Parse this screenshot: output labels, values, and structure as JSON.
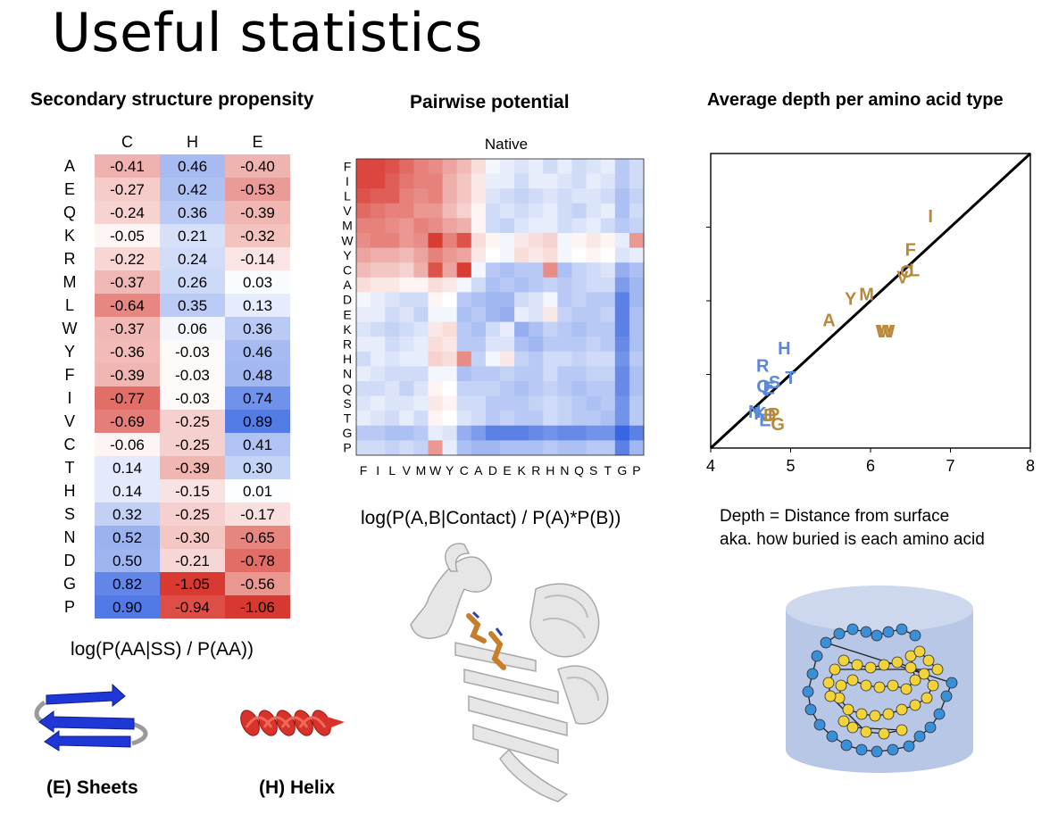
{
  "slide": {
    "title": "Useful statistics"
  },
  "ss_panel": {
    "header": "Secondary structure propensity",
    "formula": "log(P(AA|SS) / P(AA))",
    "sheets_label": "(E) Sheets",
    "helix_label": "(H) Helix"
  },
  "pair_panel": {
    "header": "Pairwise potential",
    "formula": "log(P(A,B|Contact) / P(A)*P(B))"
  },
  "depth_panel": {
    "header": "Average depth per amino acid type",
    "note_line1": "Depth = Distance from surface",
    "note_line2": "aka. how buried is each amino acid"
  },
  "colors": {
    "heat_neg": "#d7301f",
    "heat_pos": "#2c5de0",
    "polar": "#5b88d6",
    "hydrophobic": "#b8893a",
    "sheet_blue": "#1f37d6",
    "helix_red": "#d8322a",
    "bead_blue": "#3a8fd8",
    "bead_yellow": "#f2d33a",
    "cylinder": "#b8c7e6"
  },
  "chart_data": [
    {
      "type": "heatmap",
      "title": "",
      "columns": [
        "C",
        "H",
        "E"
      ],
      "rows": [
        "A",
        "E",
        "Q",
        "K",
        "R",
        "M",
        "L",
        "W",
        "Y",
        "F",
        "I",
        "V",
        "C",
        "T",
        "H",
        "S",
        "N",
        "D",
        "G",
        "P"
      ],
      "values": [
        [
          -0.41,
          0.46,
          -0.4
        ],
        [
          -0.27,
          0.42,
          -0.53
        ],
        [
          -0.24,
          0.36,
          -0.39
        ],
        [
          -0.05,
          0.21,
          -0.32
        ],
        [
          -0.22,
          0.24,
          -0.14
        ],
        [
          -0.37,
          0.26,
          0.03
        ],
        [
          -0.64,
          0.35,
          0.13
        ],
        [
          -0.37,
          0.06,
          0.36
        ],
        [
          -0.36,
          -0.03,
          0.46
        ],
        [
          -0.39,
          -0.03,
          0.48
        ],
        [
          -0.77,
          -0.03,
          0.74
        ],
        [
          -0.69,
          -0.25,
          0.89
        ],
        [
          -0.06,
          -0.25,
          0.41
        ],
        [
          0.14,
          -0.39,
          0.3
        ],
        [
          0.14,
          -0.15,
          0.01
        ],
        [
          0.32,
          -0.25,
          -0.17
        ],
        [
          0.52,
          -0.3,
          -0.65
        ],
        [
          0.5,
          -0.21,
          -0.78
        ],
        [
          0.82,
          -1.05,
          -0.56
        ],
        [
          0.9,
          -0.94,
          -1.06
        ]
      ],
      "labels": [
        [
          "-0.41",
          "0.46",
          "-0.40"
        ],
        [
          "-0.27",
          "0.42",
          "-0.53"
        ],
        [
          "-0.24",
          "0.36",
          "-0.39"
        ],
        [
          "-0.05",
          "0.21",
          "-0.32"
        ],
        [
          "-0.22",
          "0.24",
          "-0.14"
        ],
        [
          "-0.37",
          "0.26",
          "0.03"
        ],
        [
          "-0.64",
          "0.35",
          "0.13"
        ],
        [
          "-0.37",
          "0.06",
          "0.36"
        ],
        [
          "-0.36",
          "-0.03",
          "0.46"
        ],
        [
          "-0.39",
          "-0.03",
          "0.48"
        ],
        [
          "-0.77",
          "-0.03",
          "0.74"
        ],
        [
          "-0.69",
          "-0.25",
          "0.89"
        ],
        [
          "-0.06",
          "-0.25",
          "0.41"
        ],
        [
          "0.14",
          "-0.39",
          "0.30"
        ],
        [
          "0.14",
          "-0.15",
          "0.01"
        ],
        [
          "0.32",
          "-0.25",
          "-0.17"
        ],
        [
          "0.52",
          "-0.30",
          "-0.65"
        ],
        [
          "0.50",
          "-0.21",
          "-0.78"
        ],
        [
          "0.82",
          "-1.05",
          "-0.56"
        ],
        [
          "0.90",
          "-0.94",
          "-1.06"
        ]
      ]
    },
    {
      "type": "heatmap",
      "title": "Native",
      "rows": [
        "F",
        "I",
        "L",
        "V",
        "M",
        "W",
        "Y",
        "C",
        "A",
        "D",
        "E",
        "K",
        "R",
        "H",
        "N",
        "Q",
        "S",
        "T",
        "G",
        "P"
      ],
      "columns": [
        "F",
        "I",
        "L",
        "V",
        "M",
        "W",
        "Y",
        "C",
        "A",
        "D",
        "E",
        "K",
        "R",
        "H",
        "N",
        "Q",
        "S",
        "T",
        "G",
        "P"
      ],
      "values": [
        [
          -0.8,
          -0.8,
          -0.75,
          -0.65,
          -0.55,
          -0.5,
          -0.4,
          -0.3,
          -0.15,
          0.05,
          0.1,
          0.15,
          0.1,
          0.2,
          0.1,
          0.2,
          0.15,
          0.1,
          0.3,
          0.2
        ],
        [
          -0.8,
          -0.8,
          -0.7,
          -0.6,
          -0.55,
          -0.55,
          -0.35,
          -0.25,
          -0.1,
          0.1,
          0.1,
          0.2,
          0.1,
          0.1,
          0.15,
          0.2,
          0.1,
          0.15,
          0.3,
          0.2
        ],
        [
          -0.75,
          -0.7,
          -0.7,
          -0.55,
          -0.5,
          -0.55,
          -0.35,
          -0.25,
          -0.1,
          0.15,
          0.2,
          0.25,
          0.2,
          0.15,
          0.2,
          0.15,
          0.15,
          0.2,
          0.35,
          0.25
        ],
        [
          -0.65,
          -0.6,
          -0.55,
          -0.55,
          -0.45,
          -0.45,
          -0.3,
          -0.2,
          -0.05,
          0.2,
          0.15,
          0.2,
          0.15,
          0.1,
          0.2,
          0.25,
          0.15,
          0.1,
          0.35,
          0.2
        ],
        [
          -0.55,
          -0.55,
          -0.5,
          -0.45,
          -0.55,
          -0.5,
          -0.4,
          -0.35,
          -0.05,
          0.2,
          0.25,
          0.15,
          0.1,
          0.1,
          0.2,
          0.15,
          0.1,
          0.2,
          0.3,
          0.25
        ],
        [
          -0.5,
          -0.55,
          -0.55,
          -0.45,
          -0.5,
          -0.85,
          -0.55,
          -0.75,
          -0.15,
          -0.05,
          0.05,
          -0.1,
          -0.15,
          -0.2,
          0.05,
          -0.05,
          -0.1,
          -0.05,
          0.1,
          -0.45
        ],
        [
          -0.4,
          -0.35,
          -0.35,
          -0.3,
          -0.4,
          -0.55,
          -0.45,
          -0.4,
          -0.1,
          0.0,
          0.05,
          -0.15,
          -0.1,
          -0.15,
          0.05,
          0.0,
          -0.05,
          0.0,
          0.15,
          0.1
        ],
        [
          -0.3,
          -0.25,
          -0.25,
          -0.2,
          -0.35,
          -0.75,
          -0.4,
          -0.85,
          0.05,
          0.3,
          0.35,
          0.3,
          0.3,
          -0.5,
          0.35,
          0.25,
          0.2,
          0.15,
          0.45,
          0.35
        ],
        [
          -0.15,
          -0.1,
          -0.1,
          -0.05,
          -0.05,
          -0.15,
          -0.1,
          0.05,
          0.2,
          0.35,
          0.3,
          0.35,
          0.3,
          0.25,
          0.3,
          0.25,
          0.2,
          0.2,
          0.55,
          0.4
        ],
        [
          0.05,
          0.1,
          0.15,
          0.2,
          0.2,
          -0.05,
          0.0,
          0.3,
          0.35,
          0.4,
          0.4,
          0.2,
          0.15,
          0.05,
          0.3,
          0.25,
          0.3,
          0.3,
          0.7,
          0.4
        ],
        [
          0.1,
          0.1,
          0.2,
          0.15,
          0.25,
          0.05,
          0.05,
          0.35,
          0.3,
          0.4,
          0.45,
          0.1,
          0.15,
          -0.1,
          0.25,
          0.3,
          0.3,
          0.25,
          0.7,
          0.35
        ],
        [
          0.15,
          0.2,
          0.25,
          0.2,
          0.15,
          -0.1,
          -0.15,
          0.3,
          0.35,
          0.2,
          0.1,
          0.45,
          0.35,
          0.25,
          0.3,
          0.35,
          0.3,
          0.3,
          0.7,
          0.35
        ],
        [
          0.1,
          0.1,
          0.2,
          0.15,
          0.1,
          -0.15,
          -0.1,
          0.3,
          0.3,
          0.15,
          0.15,
          0.35,
          0.4,
          0.3,
          0.3,
          0.3,
          0.25,
          0.3,
          0.65,
          0.35
        ],
        [
          0.2,
          0.1,
          0.15,
          0.1,
          0.1,
          -0.2,
          -0.15,
          -0.5,
          0.25,
          0.05,
          -0.1,
          0.25,
          0.3,
          0.2,
          0.2,
          0.25,
          0.2,
          0.2,
          0.6,
          0.3
        ],
        [
          0.1,
          0.15,
          0.2,
          0.2,
          0.2,
          0.05,
          0.05,
          0.35,
          0.3,
          0.3,
          0.25,
          0.3,
          0.3,
          0.2,
          0.3,
          0.3,
          0.25,
          0.25,
          0.65,
          0.35
        ],
        [
          0.2,
          0.2,
          0.15,
          0.25,
          0.15,
          -0.05,
          0.0,
          0.25,
          0.25,
          0.25,
          0.3,
          0.35,
          0.3,
          0.25,
          0.3,
          0.35,
          0.3,
          0.3,
          0.65,
          0.35
        ],
        [
          0.15,
          0.1,
          0.15,
          0.15,
          0.1,
          -0.1,
          -0.05,
          0.2,
          0.2,
          0.3,
          0.3,
          0.3,
          0.25,
          0.2,
          0.25,
          0.3,
          0.35,
          0.3,
          0.6,
          0.3
        ],
        [
          0.1,
          0.15,
          0.2,
          0.1,
          0.2,
          -0.05,
          0.0,
          0.15,
          0.2,
          0.3,
          0.25,
          0.3,
          0.3,
          0.2,
          0.25,
          0.3,
          0.3,
          0.35,
          0.6,
          0.3
        ],
        [
          0.3,
          0.3,
          0.35,
          0.35,
          0.3,
          0.1,
          0.15,
          0.45,
          0.55,
          0.7,
          0.7,
          0.7,
          0.65,
          0.6,
          0.65,
          0.65,
          0.6,
          0.6,
          0.85,
          0.7
        ],
        [
          0.2,
          0.2,
          0.25,
          0.2,
          0.25,
          -0.45,
          0.1,
          0.35,
          0.4,
          0.4,
          0.35,
          0.35,
          0.35,
          0.3,
          0.35,
          0.35,
          0.3,
          0.3,
          0.7,
          0.4
        ]
      ]
    },
    {
      "type": "scatter",
      "title": "",
      "xlabel": "",
      "ylabel": "",
      "xlim": [
        4,
        8
      ],
      "ylim": [
        4,
        8
      ],
      "xticks": [
        "4",
        "5",
        "6",
        "7",
        "8"
      ],
      "diagonal_line": true,
      "points": [
        {
          "label": "I",
          "x": 6.75,
          "y": 7.15,
          "group": "hydrophobic"
        },
        {
          "label": "F",
          "x": 6.5,
          "y": 6.7,
          "group": "hydrophobic"
        },
        {
          "label": "C",
          "x": 6.45,
          "y": 6.4,
          "group": "hydrophobic"
        },
        {
          "label": "L",
          "x": 6.55,
          "y": 6.42,
          "group": "hydrophobic"
        },
        {
          "label": "V",
          "x": 6.4,
          "y": 6.32,
          "group": "hydrophobic"
        },
        {
          "label": "Y",
          "x": 5.75,
          "y": 6.03,
          "group": "hydrophobic"
        },
        {
          "label": "M",
          "x": 5.95,
          "y": 6.09,
          "group": "hydrophobic"
        },
        {
          "label": "A",
          "x": 5.48,
          "y": 5.74,
          "group": "hydrophobic"
        },
        {
          "label": "W",
          "x": 6.17,
          "y": 5.59,
          "group": "hydrophobic"
        },
        {
          "label": "W",
          "x": 6.2,
          "y": 5.59,
          "group": "hydrophobic"
        },
        {
          "label": "H",
          "x": 4.92,
          "y": 5.36,
          "group": "polar"
        },
        {
          "label": "R",
          "x": 4.65,
          "y": 5.12,
          "group": "polar"
        },
        {
          "label": "T",
          "x": 5.0,
          "y": 4.96,
          "group": "polar"
        },
        {
          "label": "S",
          "x": 4.8,
          "y": 4.9,
          "group": "polar"
        },
        {
          "label": "Q",
          "x": 4.66,
          "y": 4.84,
          "group": "polar"
        },
        {
          "label": "E",
          "x": 4.73,
          "y": 4.82,
          "group": "polar"
        },
        {
          "label": "N",
          "x": 4.55,
          "y": 4.5,
          "group": "polar"
        },
        {
          "label": "K",
          "x": 4.62,
          "y": 4.47,
          "group": "polar"
        },
        {
          "label": "E",
          "x": 4.68,
          "y": 4.38,
          "group": "polar"
        },
        {
          "label": "D",
          "x": 4.74,
          "y": 4.45,
          "group": "hydrophobic"
        },
        {
          "label": "P",
          "x": 4.79,
          "y": 4.46,
          "group": "hydrophobic"
        },
        {
          "label": "G",
          "x": 4.84,
          "y": 4.33,
          "group": "hydrophobic"
        }
      ]
    }
  ]
}
